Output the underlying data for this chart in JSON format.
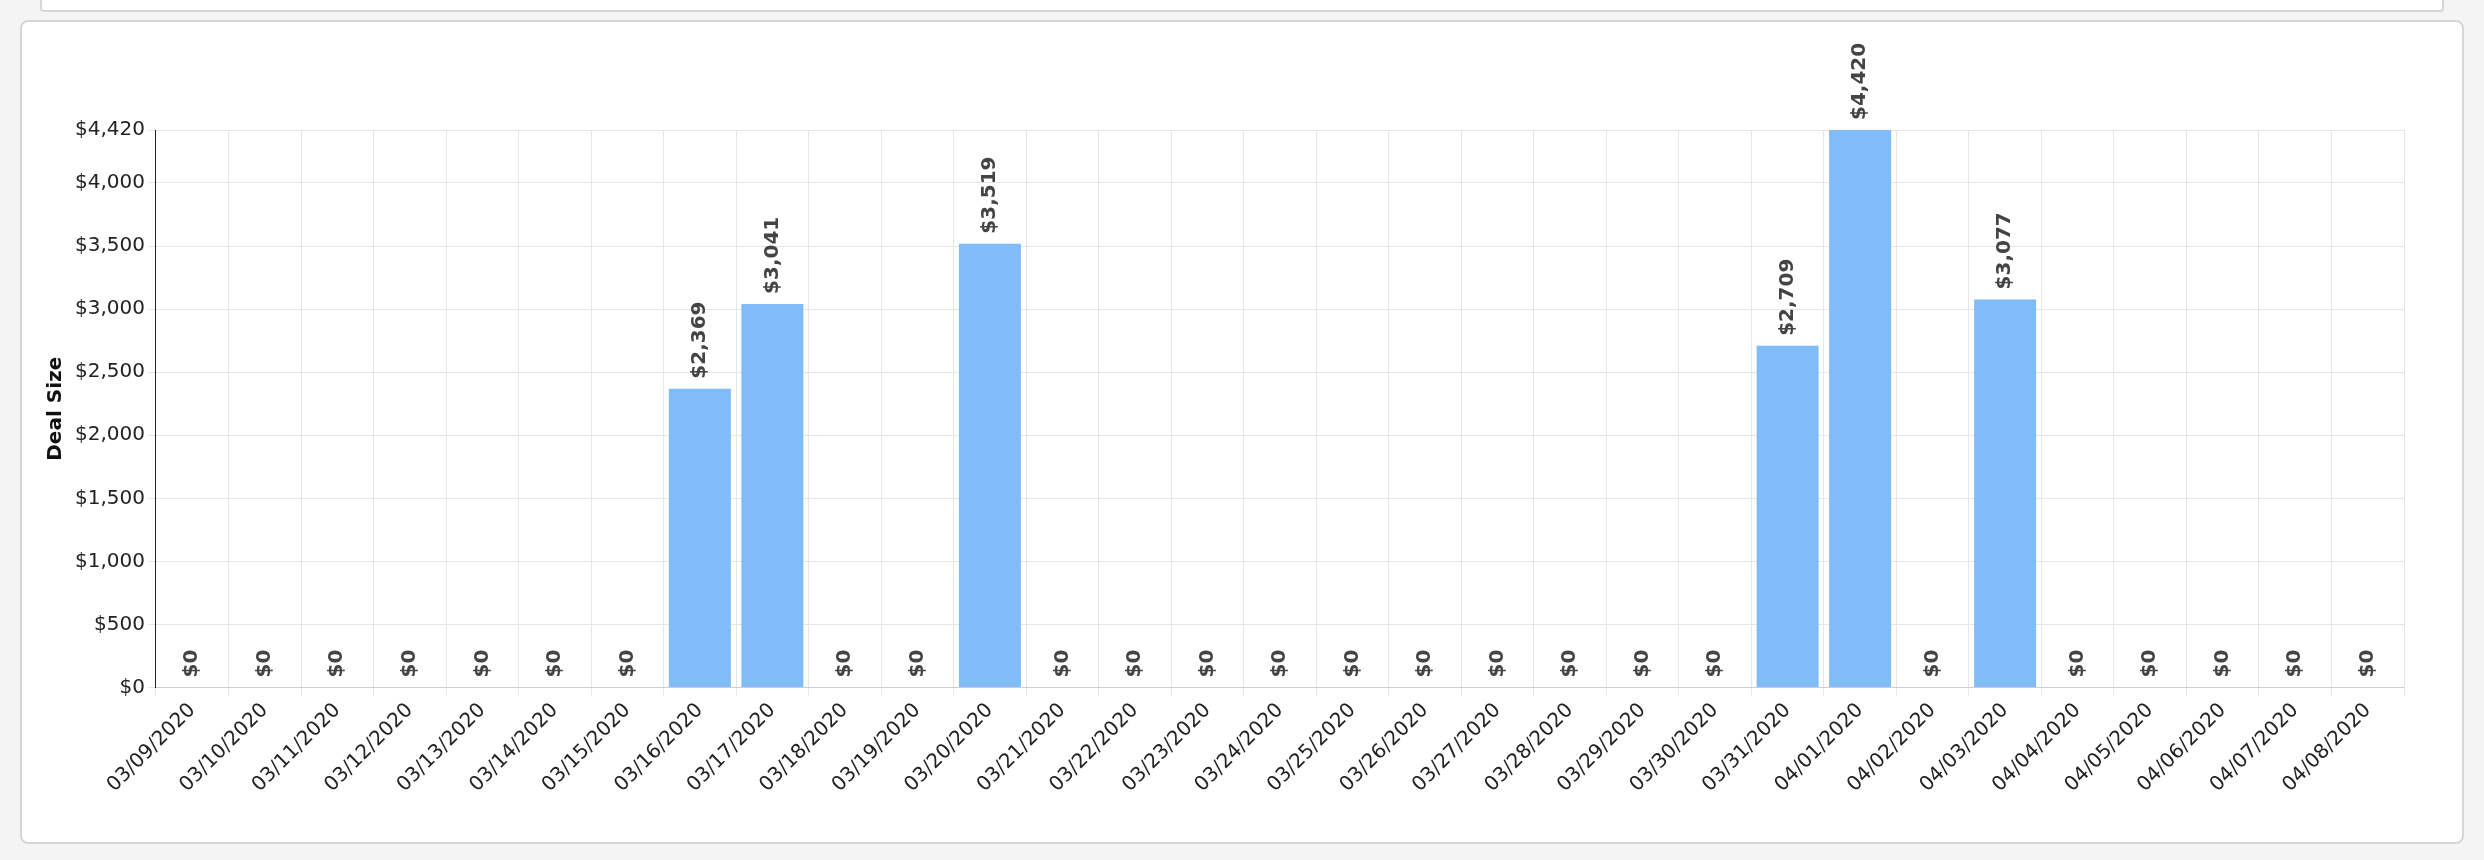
{
  "chart_data": {
    "type": "bar",
    "ylabel": "Deal Size",
    "categories": [
      "03/09/2020",
      "03/10/2020",
      "03/11/2020",
      "03/12/2020",
      "03/13/2020",
      "03/14/2020",
      "03/15/2020",
      "03/16/2020",
      "03/17/2020",
      "03/18/2020",
      "03/19/2020",
      "03/20/2020",
      "03/21/2020",
      "03/22/2020",
      "03/23/2020",
      "03/24/2020",
      "03/25/2020",
      "03/26/2020",
      "03/27/2020",
      "03/28/2020",
      "03/29/2020",
      "03/30/2020",
      "03/31/2020",
      "04/01/2020",
      "04/02/2020",
      "04/03/2020",
      "04/04/2020",
      "04/05/2020",
      "04/06/2020",
      "04/07/2020",
      "04/08/2020"
    ],
    "values": [
      0,
      0,
      0,
      0,
      0,
      0,
      0,
      2369,
      3041,
      0,
      0,
      3519,
      0,
      0,
      0,
      0,
      0,
      0,
      0,
      0,
      0,
      0,
      2709,
      4420,
      0,
      3077,
      0,
      0,
      0,
      0,
      0
    ],
    "value_labels": [
      "$0",
      "$0",
      "$0",
      "$0",
      "$0",
      "$0",
      "$0",
      "$2,369",
      "$3,041",
      "$0",
      "$0",
      "$3,519",
      "$0",
      "$0",
      "$0",
      "$0",
      "$0",
      "$0",
      "$0",
      "$0",
      "$0",
      "$0",
      "$2,709",
      "$4,420",
      "$0",
      "$3,077",
      "$0",
      "$0",
      "$0",
      "$0",
      "$0"
    ],
    "color": "#80bcf8",
    "ylim": [
      0,
      4420
    ],
    "yticks": [
      {
        "value": 0,
        "label": "$0"
      },
      {
        "value": 500,
        "label": "$500"
      },
      {
        "value": 1000,
        "label": "$1,000"
      },
      {
        "value": 1500,
        "label": "$1,500"
      },
      {
        "value": 2000,
        "label": "$2,000"
      },
      {
        "value": 2500,
        "label": "$2,500"
      },
      {
        "value": 3000,
        "label": "$3,000"
      },
      {
        "value": 3500,
        "label": "$3,500"
      },
      {
        "value": 4000,
        "label": "$4,000"
      },
      {
        "value": 4420,
        "label": "$4,420"
      }
    ],
    "grid": true
  }
}
